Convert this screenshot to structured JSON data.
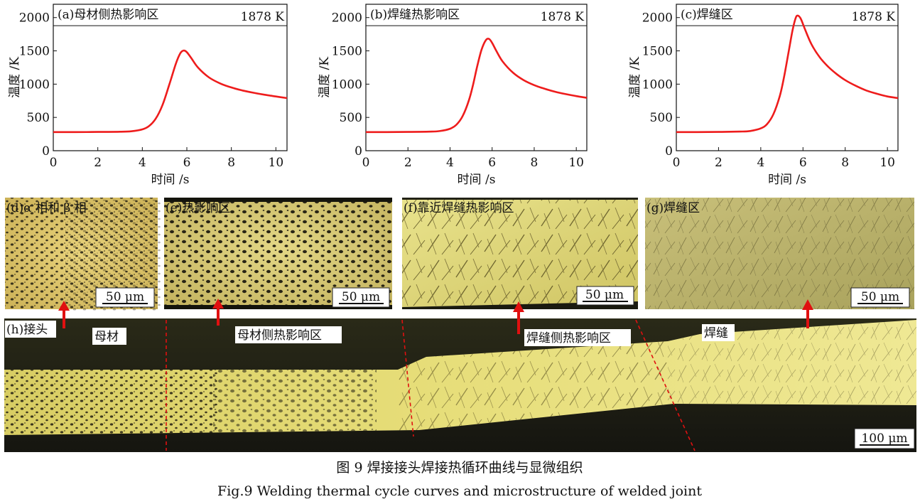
{
  "chart_data": [
    {
      "type": "line",
      "panel_label": "(a)母材侧热影响区",
      "xlabel": "时间 /s",
      "ylabel": "温度 /K",
      "xlim": [
        0,
        10.5
      ],
      "ylim": [
        0,
        2200
      ],
      "xticks": [
        0,
        2,
        4,
        6,
        8,
        10
      ],
      "yticks": [
        0,
        500,
        1000,
        1500,
        2000
      ],
      "reference_line": {
        "value": 1878,
        "label": "1878 K"
      },
      "x": [
        0,
        1,
        2,
        3,
        3.5,
        4,
        4.3,
        4.6,
        4.9,
        5.2,
        5.5,
        5.7,
        5.85,
        6.0,
        6.2,
        6.5,
        7.0,
        7.5,
        8.0,
        8.5,
        9.0,
        9.5,
        10.0,
        10.5
      ],
      "y": [
        280,
        280,
        282,
        285,
        292,
        320,
        370,
        480,
        680,
        980,
        1300,
        1460,
        1505,
        1480,
        1390,
        1250,
        1100,
        1010,
        950,
        905,
        870,
        840,
        815,
        790
      ],
      "line_color": "#ee1c1c"
    },
    {
      "type": "line",
      "panel_label": "(b)焊缝热影响区",
      "xlabel": "时间 /s",
      "ylabel": "温度 /K",
      "xlim": [
        0,
        10.5
      ],
      "ylim": [
        0,
        2200
      ],
      "xticks": [
        0,
        2,
        4,
        6,
        8,
        10
      ],
      "yticks": [
        0,
        500,
        1000,
        1500,
        2000
      ],
      "reference_line": {
        "value": 1878,
        "label": "1878 K"
      },
      "x": [
        0,
        1,
        2,
        3,
        3.5,
        4,
        4.3,
        4.6,
        4.9,
        5.1,
        5.3,
        5.5,
        5.7,
        5.85,
        6.0,
        6.2,
        6.5,
        7.0,
        7.5,
        8.0,
        8.5,
        9.0,
        9.5,
        10.0,
        10.5
      ],
      "y": [
        280,
        280,
        282,
        286,
        295,
        330,
        390,
        520,
        760,
        1000,
        1280,
        1520,
        1660,
        1680,
        1620,
        1500,
        1340,
        1170,
        1060,
        985,
        930,
        885,
        850,
        820,
        795
      ],
      "line_color": "#ee1c1c"
    },
    {
      "type": "line",
      "panel_label": "(c)焊缝区",
      "xlabel": "时间 /s",
      "ylabel": "温度 /K",
      "xlim": [
        0,
        10.5
      ],
      "ylim": [
        0,
        2200
      ],
      "xticks": [
        0,
        2,
        4,
        6,
        8,
        10
      ],
      "yticks": [
        0,
        500,
        1000,
        1500,
        2000
      ],
      "reference_line": {
        "value": 1878,
        "label": "1878 K"
      },
      "x": [
        0,
        1,
        2,
        3,
        3.5,
        4,
        4.3,
        4.6,
        4.9,
        5.1,
        5.3,
        5.5,
        5.65,
        5.75,
        5.9,
        6.1,
        6.4,
        6.8,
        7.2,
        7.6,
        8.0,
        8.5,
        9.0,
        9.5,
        10.0,
        10.5
      ],
      "y": [
        280,
        280,
        282,
        287,
        296,
        335,
        400,
        550,
        820,
        1100,
        1450,
        1800,
        1990,
        2030,
        1980,
        1820,
        1600,
        1400,
        1260,
        1150,
        1060,
        975,
        905,
        855,
        815,
        790
      ],
      "line_color": "#ee1c1c"
    }
  ],
  "micrographs": {
    "d": {
      "label": "(d)α 相和 β 相",
      "scale": "50 μm"
    },
    "e": {
      "label": "(e)热影响区",
      "scale": "50 μm"
    },
    "f": {
      "label": "(f)靠近焊缝热影响区",
      "scale": "50 μm"
    },
    "g": {
      "label": "(g)焊缝区",
      "scale": "50 μm"
    },
    "h": {
      "label": "(h)接头",
      "scale": "100 μm",
      "regions": [
        "母材",
        "母材侧热影响区",
        "焊缝侧热影响区",
        "焊缝"
      ]
    }
  },
  "caption": {
    "cn": "图 9  焊接接头焊接热循环曲线与显微组织",
    "en": "Fig.9  Welding thermal cycle curves and microstructure of welded joint"
  },
  "colors": {
    "curve": "#ee1c1c",
    "arrow": "#e01010",
    "divider": "#e01010",
    "micro_light": "#e0d470",
    "micro_dark": "#1a1a10"
  }
}
